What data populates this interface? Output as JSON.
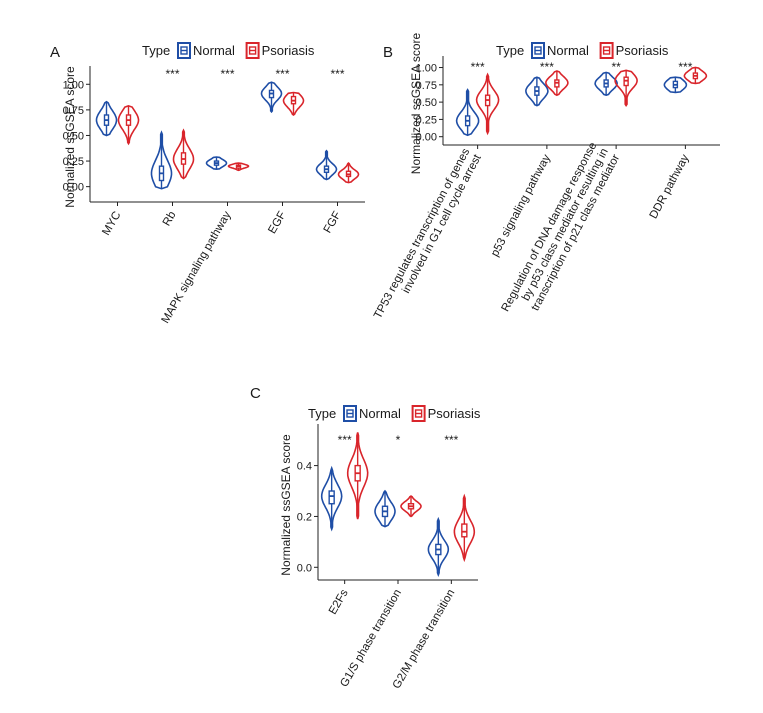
{
  "colors": {
    "normal": "#1f4ea6",
    "psoriasis": "#d9252b",
    "axis": "#222222",
    "text": "#1a1a1a"
  },
  "chart_data": [
    {
      "type": "violin",
      "panel": "A",
      "title": "",
      "ylabel": "Normalized ssGSEA score",
      "xlabel": "",
      "ylim": [
        -0.15,
        1.12
      ],
      "yticks": [
        0,
        0.25,
        0.5,
        0.75,
        1
      ],
      "ytick_labels": [
        "0.00",
        "0.25",
        "0.50",
        "0.75",
        "1.00"
      ],
      "legend": {
        "title": "Type",
        "entries": [
          "Normal",
          "Psoriasis"
        ],
        "position": "top"
      },
      "categories": [
        "MYC",
        "Rb",
        "MAPK signaling pathway",
        "EGF",
        "FGF"
      ],
      "significance": [
        "",
        "***",
        "***",
        "***",
        "***"
      ],
      "series": [
        {
          "name": "Normal",
          "median": [
            0.65,
            0.13,
            0.23,
            0.91,
            0.17
          ],
          "q1": [
            0.6,
            0.06,
            0.21,
            0.87,
            0.14
          ],
          "q3": [
            0.7,
            0.2,
            0.25,
            0.94,
            0.2
          ],
          "min": [
            0.5,
            -0.02,
            0.17,
            0.73,
            0.07
          ],
          "max": [
            0.83,
            0.53,
            0.29,
            1.02,
            0.35
          ]
        },
        {
          "name": "Psoriasis",
          "median": [
            0.65,
            0.27,
            0.2,
            0.84,
            0.12
          ],
          "q1": [
            0.6,
            0.22,
            0.19,
            0.81,
            0.1
          ],
          "q3": [
            0.7,
            0.33,
            0.21,
            0.88,
            0.15
          ],
          "min": [
            0.42,
            0.08,
            0.16,
            0.7,
            0.04
          ],
          "max": [
            0.79,
            0.55,
            0.23,
            0.92,
            0.23
          ]
        }
      ]
    },
    {
      "type": "violin",
      "panel": "B",
      "title": "",
      "ylabel": "Normalized ssGSEA score",
      "xlabel": "",
      "ylim": [
        -0.12,
        1.08
      ],
      "yticks": [
        0,
        0.25,
        0.5,
        0.75,
        1
      ],
      "ytick_labels": [
        "0.00",
        "0.25",
        "0.50",
        "0.75",
        "1.00"
      ],
      "legend": {
        "title": "Type",
        "entries": [
          "Normal",
          "Psoriasis"
        ],
        "position": "top"
      },
      "categories": [
        [
          "TP53 regulates transcription of genes",
          "involved in G1 cell cycle arrest"
        ],
        [
          "p53 signaling pathway"
        ],
        [
          "Regulation of DNA damage response",
          "by p53 class mediator resulting in",
          "transcription of p21 class mediator"
        ],
        [
          "DDR pathway"
        ]
      ],
      "significance": [
        "***",
        "***",
        "**",
        "***"
      ],
      "series": [
        {
          "name": "Normal",
          "median": [
            0.23,
            0.66,
            0.77,
            0.75
          ],
          "q1": [
            0.16,
            0.6,
            0.72,
            0.71
          ],
          "q3": [
            0.3,
            0.72,
            0.82,
            0.8
          ],
          "min": [
            0.02,
            0.45,
            0.6,
            0.64
          ],
          "max": [
            0.68,
            0.86,
            0.93,
            0.86
          ]
        },
        {
          "name": "Psoriasis",
          "median": [
            0.53,
            0.78,
            0.81,
            0.88
          ],
          "q1": [
            0.45,
            0.72,
            0.74,
            0.84
          ],
          "q3": [
            0.6,
            0.82,
            0.86,
            0.92
          ],
          "min": [
            0.05,
            0.6,
            0.45,
            0.77
          ],
          "max": [
            0.9,
            0.95,
            0.96,
            1.0
          ]
        }
      ]
    },
    {
      "type": "violin",
      "panel": "C",
      "title": "",
      "ylabel": "Normalized ssGSEA score",
      "xlabel": "",
      "ylim": [
        -0.05,
        0.54
      ],
      "yticks": [
        0,
        0.2,
        0.4
      ],
      "ytick_labels": [
        "0.0",
        "0.2",
        "0.4"
      ],
      "legend": {
        "title": "Type",
        "entries": [
          "Normal",
          "Psoriasis"
        ],
        "position": "top"
      },
      "categories": [
        "E2Fs",
        "G1/S phase transition",
        "G2/M phase transition"
      ],
      "significance": [
        "***",
        "*",
        "***"
      ],
      "series": [
        {
          "name": "Normal",
          "median": [
            0.28,
            0.22,
            0.07
          ],
          "q1": [
            0.25,
            0.2,
            0.05
          ],
          "q3": [
            0.3,
            0.24,
            0.09
          ],
          "min": [
            0.15,
            0.16,
            -0.03
          ],
          "max": [
            0.39,
            0.3,
            0.19
          ]
        },
        {
          "name": "Psoriasis",
          "median": [
            0.37,
            0.24,
            0.14
          ],
          "q1": [
            0.34,
            0.23,
            0.12
          ],
          "q3": [
            0.4,
            0.25,
            0.17
          ],
          "min": [
            0.19,
            0.2,
            0.03
          ],
          "max": [
            0.53,
            0.28,
            0.28
          ]
        }
      ]
    }
  ]
}
